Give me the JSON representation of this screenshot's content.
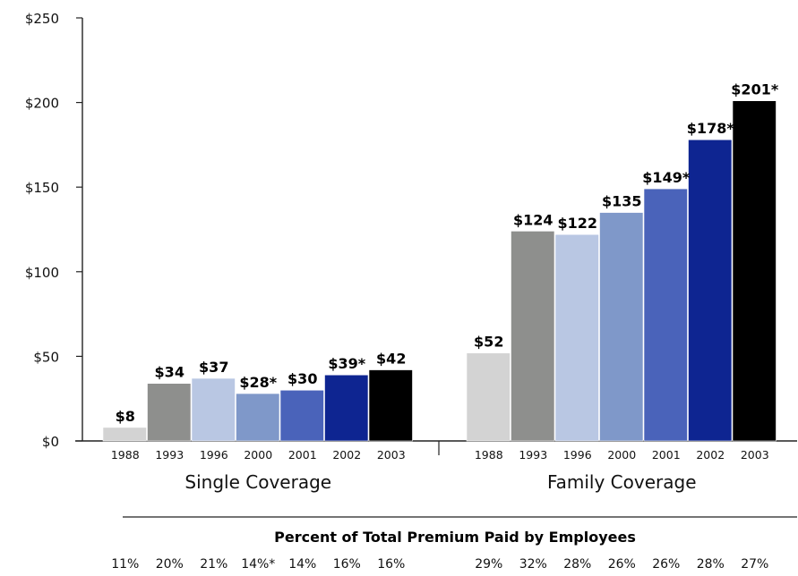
{
  "chart_data": {
    "type": "bar",
    "title": "",
    "xlabel": "",
    "ylabel": "",
    "ylim": [
      0,
      250
    ],
    "yticks": [
      0,
      50,
      100,
      150,
      200,
      250
    ],
    "ytick_labels": [
      "$0",
      "$50",
      "$100",
      "$150",
      "$200",
      "$250"
    ],
    "grid": false,
    "series_colors": [
      "#d3d3d3",
      "#8e8f8d",
      "#b9c7e3",
      "#7f98c9",
      "#4a63ba",
      "#0e2591",
      "#000000"
    ],
    "groups": [
      {
        "name": "Single Coverage",
        "categories": [
          "1988",
          "1993",
          "1996",
          "2000",
          "2001",
          "2002",
          "2003"
        ],
        "values": [
          8,
          34,
          37,
          28,
          30,
          39,
          42
        ],
        "value_labels": [
          "$8",
          "$34",
          "$37",
          "$28*",
          "$30",
          "$39*",
          "$42"
        ],
        "percent_paid": [
          "11%",
          "20%",
          "21%",
          "14%*",
          "14%",
          "16%",
          "16%"
        ]
      },
      {
        "name": "Family Coverage",
        "categories": [
          "1988",
          "1993",
          "1996",
          "2000",
          "2001",
          "2002",
          "2003"
        ],
        "values": [
          52,
          124,
          122,
          135,
          149,
          178,
          201
        ],
        "value_labels": [
          "$52",
          "$124",
          "$122",
          "$135",
          "$149*",
          "$178*",
          "$201*"
        ],
        "percent_paid": [
          "29%",
          "32%",
          "28%",
          "26%",
          "26%",
          "28%",
          "27%"
        ]
      }
    ],
    "percent_title": "Percent of Total Premium Paid by Employees"
  }
}
